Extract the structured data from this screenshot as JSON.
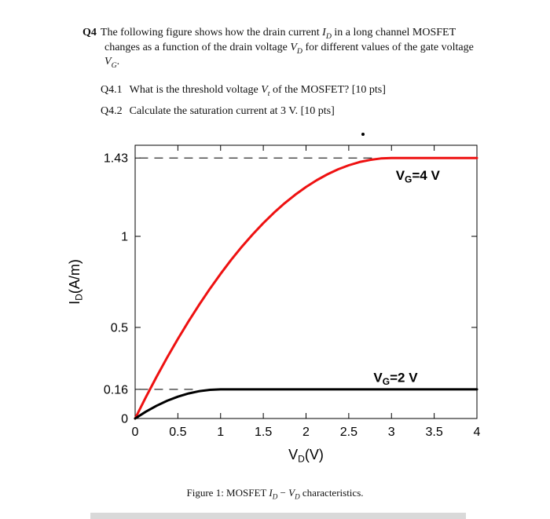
{
  "question": {
    "q4_label": "Q4",
    "q4_text": [
      "The following figure shows how the drain current ",
      {
        "v": "I",
        "s": "D"
      },
      " in a long channel MOSFET changes as a function of the drain voltage ",
      {
        "v": "V",
        "s": "D"
      },
      " for different values of the gate voltage ",
      {
        "v": "V",
        "s": "G"
      },
      "."
    ],
    "q41_label": "Q4.1",
    "q41_text": [
      "What is the threshold voltage ",
      {
        "v": "V",
        "s": "t"
      },
      " of the MOSFET? [10 pts]"
    ],
    "q42_label": "Q4.2",
    "q42_text": [
      "Calculate the saturation current at 3 V. [10 pts]"
    ]
  },
  "figure": {
    "caption": [
      "Figure 1: MOSFET ",
      {
        "v": "I",
        "s": "D"
      },
      " − ",
      {
        "v": "V",
        "s": "D"
      },
      " characteristics."
    ]
  },
  "chart_data": {
    "type": "line",
    "title": "",
    "xlabel": {
      "pre": "V",
      "sub": "D",
      "post": "(V)"
    },
    "ylabel": {
      "pre": "I",
      "sub": "D",
      "post": "(A/m)"
    },
    "xlim": [
      0,
      4
    ],
    "ylim": [
      0,
      1.5
    ],
    "x_ticks": [
      0,
      0.5,
      1,
      1.5,
      2,
      2.5,
      3,
      3.5,
      4
    ],
    "x_tick_labels": [
      "0",
      "0.5",
      "1",
      "1.5",
      "2",
      "2.5",
      "3",
      "3.5",
      "4"
    ],
    "y_ticks": [
      0,
      0.16,
      0.5,
      1,
      1.43
    ],
    "y_tick_labels": [
      "0",
      "0.16",
      "0.5",
      "1",
      "1.43"
    ],
    "grid": false,
    "box": true,
    "legend_position": "none",
    "series": [
      {
        "name": "VG4",
        "label": "VG=4 V",
        "color": "#ee1111",
        "width": 3,
        "saturation_current": 1.43,
        "saturation_voltage": 3,
        "points": [
          [
            0,
            0
          ],
          [
            0.125,
            0.1167
          ],
          [
            0.25,
            0.2284
          ],
          [
            0.375,
            0.3352
          ],
          [
            0.5,
            0.4369
          ],
          [
            0.625,
            0.5338
          ],
          [
            0.75,
            0.6256
          ],
          [
            0.875,
            0.7125
          ],
          [
            1,
            0.7944
          ],
          [
            1.125,
            0.8714
          ],
          [
            1.25,
            0.9434
          ],
          [
            1.375,
            1.0104
          ],
          [
            1.5,
            1.0725
          ],
          [
            1.625,
            1.1296
          ],
          [
            1.75,
            1.1818
          ],
          [
            1.875,
            1.2289
          ],
          [
            2,
            1.2711
          ],
          [
            2.125,
            1.3084
          ],
          [
            2.25,
            1.3406
          ],
          [
            2.375,
            1.3679
          ],
          [
            2.5,
            1.3903
          ],
          [
            2.625,
            1.4076
          ],
          [
            2.75,
            1.42
          ],
          [
            2.875,
            1.4275
          ],
          [
            3,
            1.43
          ],
          [
            3.5,
            1.43
          ],
          [
            4,
            1.43
          ]
        ]
      },
      {
        "name": "VG2",
        "label": "VG=2 V",
        "color": "#000000",
        "width": 3,
        "saturation_current": 0.16,
        "saturation_voltage": 1,
        "points": [
          [
            0,
            0
          ],
          [
            0.125,
            0.0375
          ],
          [
            0.25,
            0.07
          ],
          [
            0.375,
            0.0975
          ],
          [
            0.5,
            0.12
          ],
          [
            0.625,
            0.1375
          ],
          [
            0.75,
            0.15
          ],
          [
            0.875,
            0.1575
          ],
          [
            1,
            0.16
          ],
          [
            1.5,
            0.16
          ],
          [
            2,
            0.16
          ],
          [
            2.5,
            0.16
          ],
          [
            3,
            0.16
          ],
          [
            3.5,
            0.16
          ],
          [
            4,
            0.16
          ]
        ]
      }
    ],
    "dashed_guides": [
      {
        "y": 1.43,
        "x_from": 0.05,
        "x_to": 2.8
      },
      {
        "y": 0.16,
        "x_from": 0.05,
        "x_to": 0.72
      }
    ],
    "curve_labels": [
      {
        "pre": "V",
        "sub": "G",
        "post": "=4 V",
        "x": 3.05,
        "y": 1.31,
        "color": "#000000"
      },
      {
        "pre": "V",
        "sub": "G",
        "post": "=2 V",
        "x": 2.79,
        "y": 0.2,
        "color": "#000000"
      }
    ]
  }
}
